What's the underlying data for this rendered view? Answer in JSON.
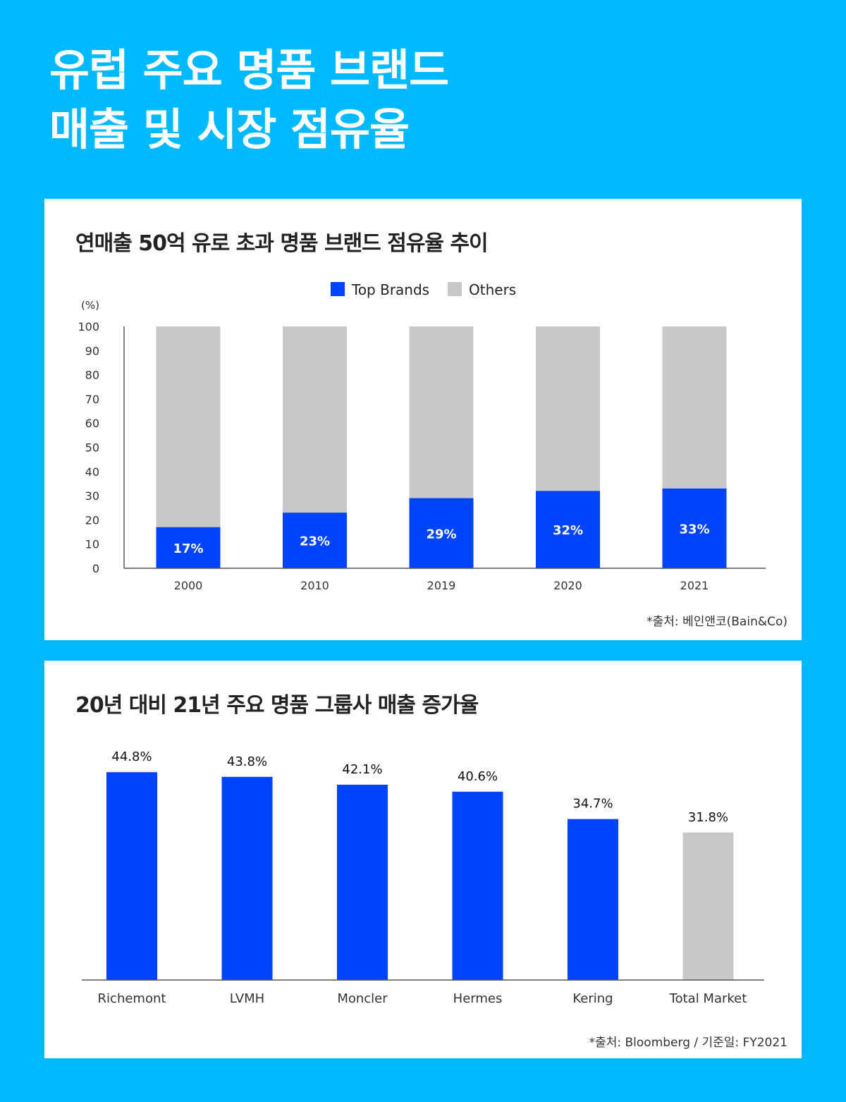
{
  "header": {
    "title_line1": "유럽 주요 명품 브랜드",
    "title_line2": "매출 및 시장 점유율"
  },
  "colors": {
    "background": "#00b9ff",
    "top_brands": "#0044ff",
    "others": "#c8c8c8",
    "card": "#ffffff"
  },
  "chart_data": [
    {
      "type": "bar",
      "stacked": true,
      "title": "연매출 50억 유로 초과 명품 브랜드 점유율 추이",
      "ylabel": "(%)",
      "xlabel": "",
      "ylim": [
        0,
        100
      ],
      "yticks": [
        0,
        10,
        20,
        30,
        40,
        50,
        60,
        70,
        80,
        90,
        100
      ],
      "categories": [
        "2000",
        "2010",
        "2019",
        "2020",
        "2021"
      ],
      "series": [
        {
          "name": "Top Brands",
          "values": [
            17,
            23,
            29,
            32,
            33
          ],
          "labels": [
            "17%",
            "23%",
            "29%",
            "32%",
            "33%"
          ]
        },
        {
          "name": "Others",
          "values": [
            83,
            77,
            71,
            68,
            67
          ]
        }
      ],
      "legend": "top-center",
      "grid": false,
      "source": "*출처: 베인앤코(Bain&Co)"
    },
    {
      "type": "bar",
      "title": "20년 대비 21년 주요 명품 그룹사 매출 증가율",
      "xlabel": "",
      "ylabel": "",
      "ylim": [
        0,
        45
      ],
      "categories": [
        "Richemont",
        "LVMH",
        "Moncler",
        "Hermes",
        "Kering",
        "Total Market"
      ],
      "values": [
        44.8,
        43.8,
        42.1,
        40.6,
        34.7,
        31.8
      ],
      "labels": [
        "44.8%",
        "43.8%",
        "42.1%",
        "40.6%",
        "34.7%",
        "31.8%"
      ],
      "highlight": [
        "top",
        "top",
        "top",
        "top",
        "top",
        "others"
      ],
      "grid": false,
      "source": "*출처: Bloomberg / 기준일: FY2021"
    }
  ]
}
